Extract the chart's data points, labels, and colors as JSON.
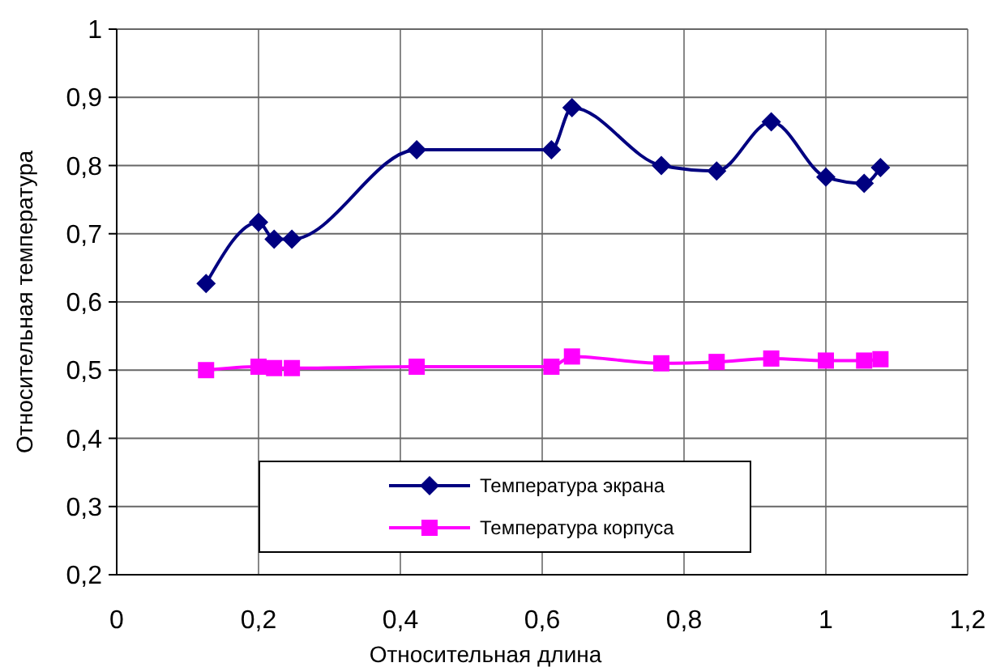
{
  "chart_data": {
    "type": "line",
    "xlabel": "Относительная длина",
    "ylabel": "Относительная температура",
    "series": [
      {
        "name": "Температура экрана",
        "color": "#000080",
        "marker": "diamond",
        "x": [
          0.126,
          0.2,
          0.222,
          0.247,
          0.423,
          0.613,
          0.642,
          0.768,
          0.846,
          0.923,
          1.0,
          1.054,
          1.077
        ],
        "values": [
          0.627,
          0.717,
          0.692,
          0.692,
          0.823,
          0.823,
          0.885,
          0.8,
          0.792,
          0.864,
          0.783,
          0.774,
          0.797
        ]
      },
      {
        "name": "Температура корпуса",
        "color": "#ff00ff",
        "marker": "square",
        "x": [
          0.126,
          0.2,
          0.222,
          0.247,
          0.423,
          0.613,
          0.642,
          0.768,
          0.846,
          0.923,
          1.0,
          1.054,
          1.077
        ],
        "values": [
          0.5,
          0.505,
          0.503,
          0.503,
          0.505,
          0.505,
          0.52,
          0.51,
          0.512,
          0.517,
          0.514,
          0.514,
          0.516
        ]
      }
    ],
    "xlim": [
      0,
      1.2
    ],
    "xticks": [
      0,
      {
        "value": 0.2,
        "label": "0,2"
      },
      {
        "value": 0.4,
        "label": "0,4"
      },
      {
        "value": 0.6,
        "label": "0,6"
      },
      {
        "value": 0.8,
        "label": "0,8"
      },
      1,
      {
        "value": 1.2,
        "label": "1,2"
      }
    ],
    "ylim": [
      0.2,
      1
    ],
    "yticks": [
      {
        "value": 0.2,
        "label": "0,2"
      },
      {
        "value": 0.3,
        "label": "0,3"
      },
      {
        "value": 0.4,
        "label": "0,4"
      },
      {
        "value": 0.5,
        "label": "0,5"
      },
      {
        "value": 0.6,
        "label": "0,6"
      },
      {
        "value": 0.7,
        "label": "0,7"
      },
      {
        "value": 0.8,
        "label": "0,8"
      },
      {
        "value": 0.9,
        "label": "0,9"
      },
      1
    ],
    "grid": true,
    "legend": "bottom",
    "line_style": "solid"
  }
}
